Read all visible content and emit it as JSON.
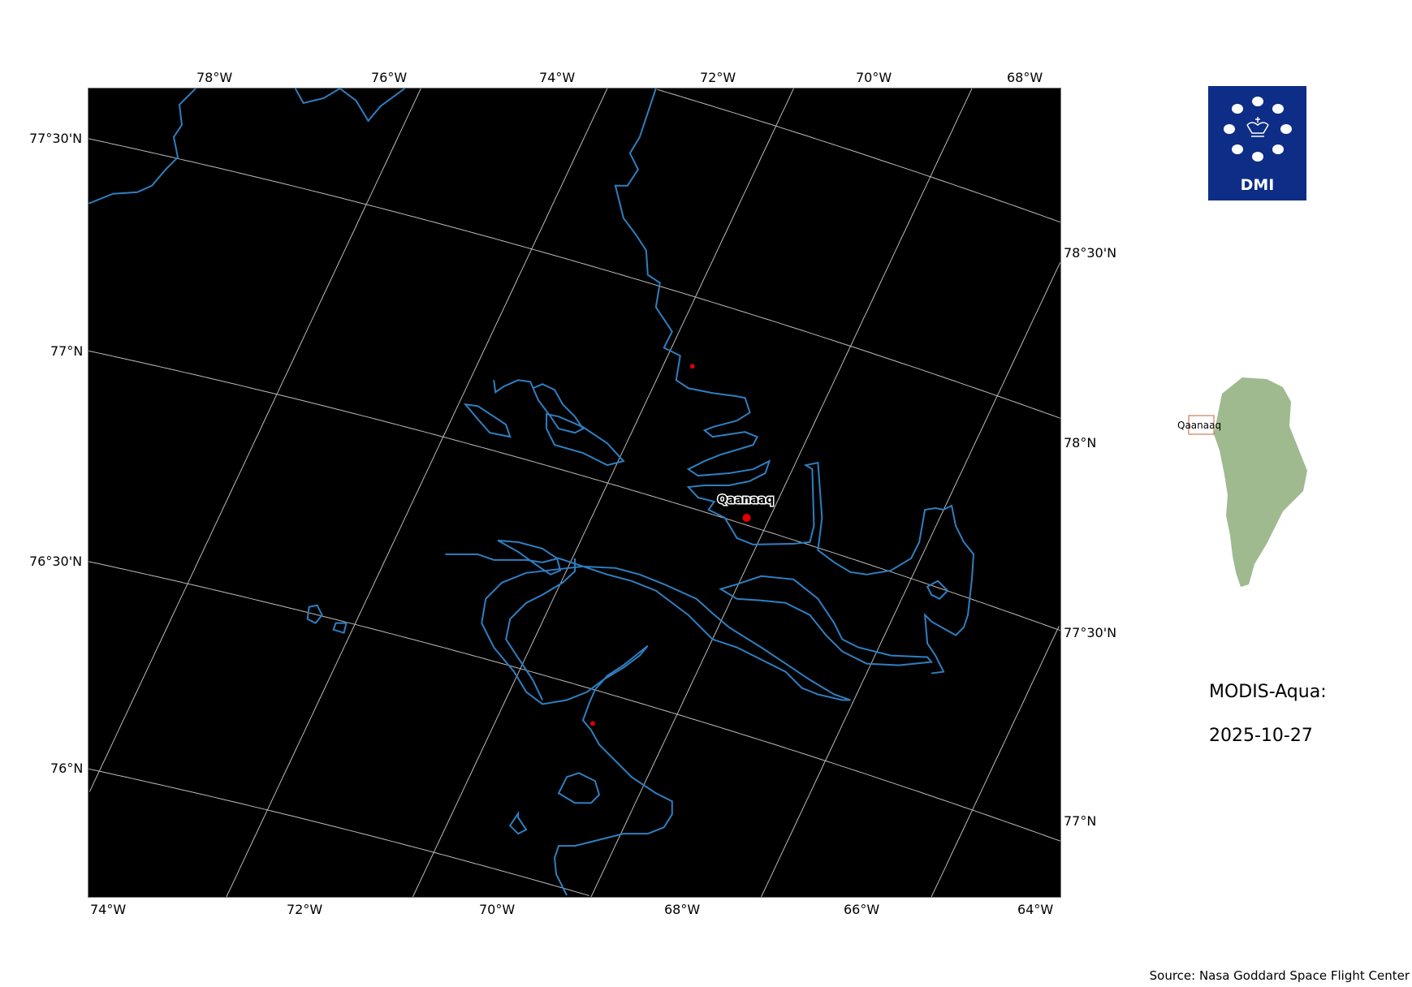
{
  "map": {
    "top_lon_labels": [
      "78°W",
      "76°W",
      "74°W",
      "72°W",
      "70°W",
      "68°W"
    ],
    "bottom_lon_labels": [
      "74°W",
      "72°W",
      "70°W",
      "68°W",
      "66°W",
      "64°W"
    ],
    "left_lat_labels": [
      "77°30'N",
      "77°N",
      "76°30'N",
      "76°N"
    ],
    "right_lat_labels": [
      "78°30'N",
      "78°N",
      "77°30'N",
      "77°N"
    ],
    "place_label": "Qaanaaq",
    "colors": {
      "background": "#000000",
      "coastline": "#2f7fc1",
      "graticule": "#bbbbbb",
      "marker": "#e00000"
    }
  },
  "logo": {
    "text": "DMI",
    "color": "#0d2d86"
  },
  "inset": {
    "label": "Qaanaaq",
    "land_color": "#9fba8f",
    "box_color": "#c0603a"
  },
  "sidebar": {
    "sensor": "MODIS-Aqua:",
    "date": "2025-10-27"
  },
  "source": "Source: Nasa Goddard Space Flight Center"
}
